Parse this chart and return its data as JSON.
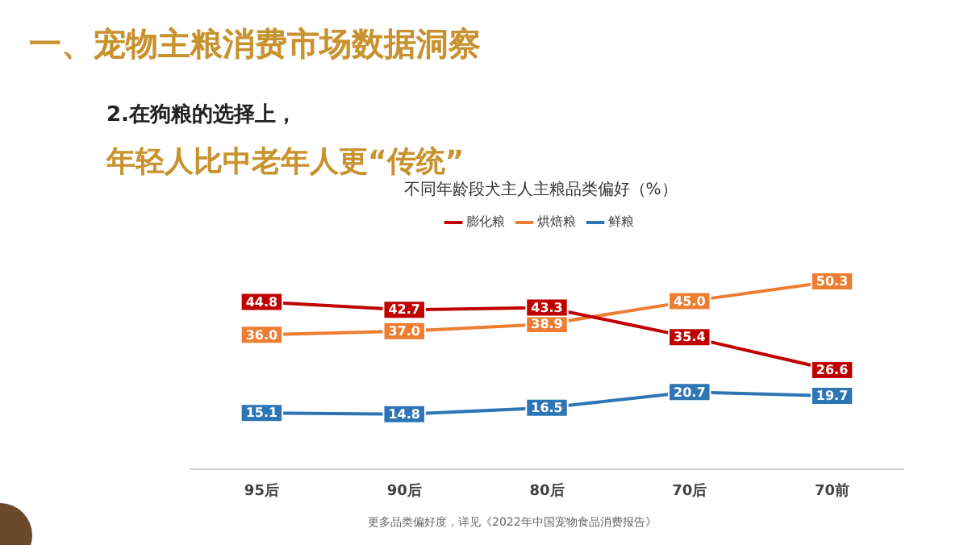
{
  "chart_data": {
    "type": "line",
    "title": "不同年龄段犬主人主粮品类偏好（%）",
    "annotations": [
      "一、宠物主粮消费市场数据洞察",
      "2.在狗粮的选择上，",
      "年轻人比中老年人更“传统”",
      "更多品类偏好度，详见《2022年中国宠物食品消费报告》"
    ],
    "categories": [
      "95后",
      "90后",
      "80后",
      "70后",
      "70前"
    ],
    "series": [
      {
        "name": "膨化粮",
        "color": "#c00000",
        "marker": "square",
        "values": [
          44.8,
          42.7,
          43.3,
          35.4,
          26.6
        ],
        "value_labels": [
          "44.8",
          "42.7",
          "43.3",
          "35.4",
          "26.6"
        ]
      },
      {
        "name": "烘焙粮",
        "color": "#ed7d31",
        "marker": "square",
        "values": [
          36.0,
          37.0,
          38.9,
          45.0,
          50.3
        ],
        "value_labels": [
          "36.0",
          "37.0",
          "38.9",
          "45.0",
          "50.3"
        ]
      },
      {
        "name": "鲜粮",
        "color": "#2e75b6",
        "marker": "square",
        "values": [
          15.1,
          14.8,
          16.5,
          20.7,
          19.7
        ],
        "value_labels": [
          "15.1",
          "14.8",
          "16.5",
          "20.7",
          "19.7"
        ]
      }
    ],
    "legend": "top",
    "tick_labels": "x"
  }
}
